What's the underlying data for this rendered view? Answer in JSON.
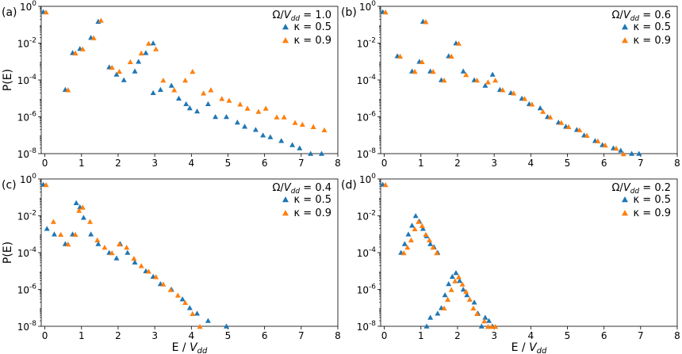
{
  "figure": {
    "xlabel_prefix": "E / ",
    "xlabel_var": "V",
    "xlabel_sub": "dd",
    "ylabel": "P(E)"
  },
  "colors": {
    "kappa_05": "#1f77b4",
    "kappa_09": "#ff7f0e"
  },
  "chart_data": [
    {
      "type": "scatter",
      "panel_label": "(a)",
      "legend_title": {
        "lhs": "Ω/",
        "var": "V",
        "sub": "dd",
        "rhs": " = 1.0"
      },
      "legend_position": "top-right",
      "xlim": [
        -0.1,
        8
      ],
      "ylim_log10": [
        -8,
        0
      ],
      "yscale": "log",
      "xticks": [
        "0",
        "1",
        "2",
        "3",
        "4",
        "5",
        "6",
        "7",
        "8"
      ],
      "yticks": [
        {
          "base": "10",
          "exp": "0"
        },
        {
          "base": "10",
          "exp": "-2"
        },
        {
          "base": "10",
          "exp": "-4"
        },
        {
          "base": "10",
          "exp": "-6"
        },
        {
          "base": "10",
          "exp": "-8"
        }
      ],
      "show_xlabel": false,
      "show_ylabel": true,
      "series": [
        {
          "name": "κ = 0.5",
          "x": [
            0,
            0.6,
            0.8,
            1.0,
            1.3,
            1.5,
            1.8,
            2.0,
            2.2,
            2.5,
            2.6,
            2.8,
            3.0,
            3.0,
            3.2,
            3.5,
            3.7,
            3.9,
            4.0,
            4.2,
            4.5,
            4.7,
            5.0,
            5.3,
            5.5,
            5.8,
            6.0,
            6.2,
            6.5,
            6.8,
            7.0,
            7.3,
            7.6,
            8.0
          ],
          "y": [
            0.5,
            3e-05,
            0.003,
            0.005,
            0.02,
            0.15,
            0.0005,
            0.0002,
            0.0001,
            0.0003,
            0.001,
            0.003,
            0.01,
            2e-05,
            3e-05,
            5e-05,
            1e-05,
            5e-06,
            3e-06,
            2e-06,
            5e-06,
            1e-06,
            1e-06,
            5e-07,
            3e-07,
            2e-07,
            1e-07,
            8e-08,
            5e-08,
            3e-08,
            2e-08,
            1e-08,
            1e-08,
            8e-09
          ]
        },
        {
          "name": "κ = 0.9",
          "x": [
            0,
            0.6,
            0.8,
            1.0,
            1.3,
            1.5,
            1.8,
            2.0,
            2.3,
            2.6,
            2.8,
            3.0,
            3.2,
            3.5,
            3.8,
            4.0,
            4.3,
            4.5,
            4.8,
            5.0,
            5.3,
            5.5,
            5.8,
            6.0,
            6.3,
            6.5,
            6.8,
            7.0,
            7.3,
            7.6,
            8.0
          ],
          "y": [
            0.5,
            3e-05,
            0.003,
            0.005,
            0.02,
            0.18,
            0.0005,
            0.0003,
            0.001,
            0.003,
            0.01,
            0.005,
            0.0001,
            3e-05,
            0.0001,
            0.0003,
            2e-05,
            3e-05,
            1e-05,
            8e-06,
            5e-06,
            3e-06,
            2e-06,
            3e-06,
            1e-06,
            1e-06,
            5e-07,
            4e-07,
            3e-07,
            2e-07,
            5e-07
          ]
        }
      ]
    },
    {
      "type": "scatter",
      "panel_label": "(b)",
      "legend_title": {
        "lhs": "Ω/",
        "var": "V",
        "sub": "dd",
        "rhs": " = 0.6"
      },
      "legend_position": "top-right",
      "xlim": [
        -0.1,
        8
      ],
      "ylim_log10": [
        -8,
        0
      ],
      "yscale": "log",
      "xticks": [
        "0",
        "1",
        "2",
        "3",
        "4",
        "5",
        "6",
        "7",
        "8"
      ],
      "yticks": [
        {
          "base": "10",
          "exp": "0"
        },
        {
          "base": "10",
          "exp": "-2"
        },
        {
          "base": "10",
          "exp": "-4"
        },
        {
          "base": "10",
          "exp": "-6"
        },
        {
          "base": "10",
          "exp": "-8"
        }
      ],
      "show_xlabel": false,
      "show_ylabel": false,
      "series": [
        {
          "name": "κ = 0.5",
          "x": [
            0,
            0.4,
            0.8,
            1.0,
            1.1,
            1.3,
            1.6,
            1.8,
            2.0,
            2.2,
            2.5,
            2.8,
            3.0,
            3.2,
            3.5,
            3.8,
            4.0,
            4.3,
            4.5,
            4.8,
            5.0,
            5.3,
            5.5,
            5.8,
            6.0,
            6.3,
            6.5,
            6.8,
            7.0
          ],
          "y": [
            0.5,
            0.002,
            0.0003,
            0.001,
            0.15,
            0.0003,
            0.0001,
            0.002,
            0.01,
            0.0003,
            0.0001,
            5e-05,
            0.0002,
            3e-05,
            2e-05,
            1e-05,
            5e-06,
            3e-06,
            1e-06,
            5e-07,
            3e-07,
            2e-07,
            1e-07,
            5e-08,
            3e-08,
            2e-08,
            1.5e-08,
            1e-08,
            1e-08
          ]
        },
        {
          "name": "κ = 0.9",
          "x": [
            0,
            0.4,
            0.8,
            1.0,
            1.1,
            1.3,
            1.6,
            1.8,
            2.0,
            2.2,
            2.5,
            2.8,
            3.0,
            3.2,
            3.5,
            3.8,
            4.0,
            4.3,
            4.5,
            4.8,
            5.0,
            5.3,
            5.5,
            5.8,
            6.0,
            6.3,
            6.5
          ],
          "y": [
            0.5,
            0.002,
            0.0003,
            0.001,
            0.15,
            0.0003,
            0.0001,
            0.002,
            0.01,
            0.0002,
            0.0001,
            8e-05,
            0.0001,
            3e-05,
            2e-05,
            1e-05,
            5e-06,
            2e-06,
            1e-06,
            5e-07,
            3e-07,
            2e-07,
            1e-07,
            5e-08,
            3e-08,
            2e-08,
            1e-08
          ]
        }
      ]
    },
    {
      "type": "scatter",
      "panel_label": "(c)",
      "legend_title": {
        "lhs": "Ω/",
        "var": "V",
        "sub": "dd",
        "rhs": " = 0.4"
      },
      "legend_position": "top-right",
      "xlim": [
        -0.1,
        8
      ],
      "ylim_log10": [
        -8,
        0
      ],
      "yscale": "log",
      "xticks": [
        "0",
        "1",
        "2",
        "3",
        "4",
        "5",
        "6",
        "7",
        "8"
      ],
      "yticks": [
        {
          "base": "10",
          "exp": "0"
        },
        {
          "base": "10",
          "exp": "-2"
        },
        {
          "base": "10",
          "exp": "-4"
        },
        {
          "base": "10",
          "exp": "-6"
        },
        {
          "base": "10",
          "exp": "-8"
        }
      ],
      "show_xlabel": true,
      "show_ylabel": true,
      "series": [
        {
          "name": "κ = 0.5",
          "x": [
            0,
            0.1,
            0.3,
            0.6,
            0.8,
            0.9,
            1.0,
            1.1,
            1.3,
            1.5,
            1.8,
            2.0,
            2.1,
            2.3,
            2.5,
            2.8,
            3.0,
            3.2,
            3.5,
            3.8,
            4.0,
            4.2,
            4.5,
            5.0
          ],
          "y": [
            0.5,
            0.002,
            0.001,
            0.0003,
            0.001,
            0.05,
            0.03,
            0.008,
            0.001,
            0.0003,
            0.0001,
            5e-05,
            0.0003,
            0.0001,
            3e-05,
            1e-05,
            5e-06,
            2e-06,
            1e-06,
            3e-07,
            1e-07,
            5e-08,
            2e-08,
            1e-08
          ]
        },
        {
          "name": "κ = 0.9",
          "x": [
            0,
            0.2,
            0.4,
            0.6,
            0.8,
            0.9,
            1.0,
            1.2,
            1.4,
            1.6,
            1.8,
            2.0,
            2.2,
            2.4,
            2.6,
            2.8,
            3.0,
            3.2,
            3.4,
            3.6,
            3.8,
            4.0,
            4.2
          ],
          "y": [
            0.5,
            0.005,
            0.001,
            0.0003,
            0.001,
            0.02,
            0.03,
            0.005,
            0.0005,
            0.0002,
            0.0001,
            0.0003,
            0.0002,
            5e-05,
            2e-05,
            1e-05,
            5e-06,
            2e-06,
            1e-06,
            5e-07,
            2e-07,
            5e-08,
            1e-08
          ]
        }
      ]
    },
    {
      "type": "scatter",
      "panel_label": "(d)",
      "legend_title": {
        "lhs": "Ω/",
        "var": "V",
        "sub": "dd",
        "rhs": " = 0.2"
      },
      "legend_position": "top-right",
      "xlim": [
        -0.1,
        8
      ],
      "ylim_log10": [
        -8,
        0
      ],
      "yscale": "log",
      "xticks": [
        "0",
        "1",
        "2",
        "3",
        "4",
        "5",
        "6",
        "7",
        "8"
      ],
      "yticks": [
        {
          "base": "10",
          "exp": "0"
        },
        {
          "base": "10",
          "exp": "-2"
        },
        {
          "base": "10",
          "exp": "-4"
        },
        {
          "base": "10",
          "exp": "-6"
        },
        {
          "base": "10",
          "exp": "-8"
        }
      ],
      "show_xlabel": true,
      "show_ylabel": false,
      "series": [
        {
          "name": "κ = 0.5",
          "x": [
            0,
            0.5,
            0.6,
            0.7,
            0.8,
            0.9,
            1.0,
            1.1,
            1.2,
            1.3,
            1.4,
            1.5,
            1.3,
            1.2,
            1.6,
            1.7,
            1.8,
            1.9,
            2.0,
            2.1,
            2.2,
            2.3,
            2.5,
            2.7,
            2.8,
            2.9,
            3.0,
            2.6,
            1.5
          ],
          "y": [
            0.5,
            0.0001,
            0.0003,
            0.001,
            0.003,
            0.01,
            0.005,
            0.002,
            0.0008,
            0.0003,
            0.0002,
            0.0001,
            3e-08,
            1e-08,
            1e-07,
            5e-07,
            2e-06,
            5e-06,
            8e-06,
            3e-06,
            1e-06,
            5e-07,
            2e-07,
            1e-08,
            3e-08,
            2e-08,
            1e-08,
            5e-08,
            5e-08
          ]
        },
        {
          "name": "κ = 0.9",
          "x": [
            0,
            0.5,
            0.6,
            0.7,
            0.8,
            0.9,
            1.0,
            1.1,
            1.2,
            1.3,
            1.4,
            1.6,
            1.7,
            1.8,
            1.9,
            2.0,
            2.1,
            2.2,
            2.3,
            2.4,
            2.5,
            2.7,
            2.8,
            2.9,
            3.0
          ],
          "y": [
            0.5,
            0.0001,
            0.0002,
            0.0005,
            0.002,
            0.005,
            0.003,
            0.001,
            0.0005,
            0.0002,
            0.0001,
            1e-07,
            3e-07,
            1e-06,
            3e-06,
            5e-06,
            2e-06,
            8e-07,
            3e-07,
            1e-07,
            5e-08,
            2e-08,
            1e-08,
            1e-08,
            1e-08
          ]
        }
      ]
    }
  ]
}
